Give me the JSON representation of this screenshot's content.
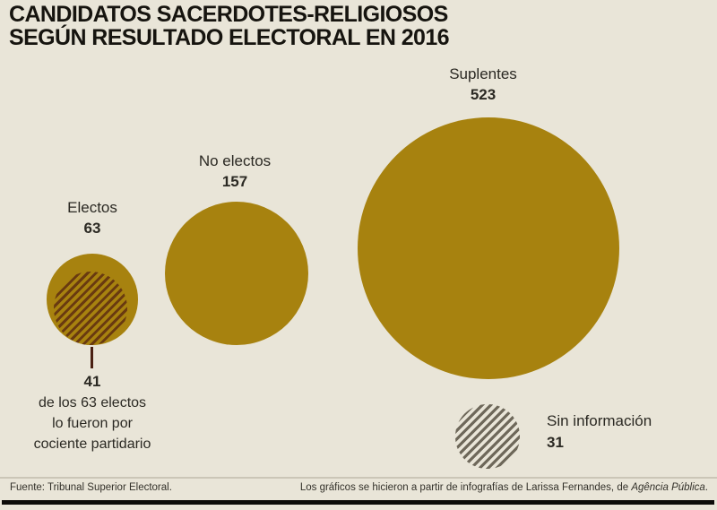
{
  "page": {
    "background": "#e9e5d8"
  },
  "title": {
    "line1": "CANDIDATOS SACERDOTES-RELIGIOSOS",
    "line2": "SEGÚN RESULTADO ELECTORAL EN 2016"
  },
  "chart_data": {
    "type": "bubble",
    "variant": "proportional-area-circles",
    "items": [
      {
        "label": "Electos",
        "value": 63,
        "fill": "solid-gold",
        "subset": {
          "value": 41,
          "fill": "hatched-brown",
          "annotation": "de los 63 electos lo fueron por cociente partidario"
        }
      },
      {
        "label": "No electos",
        "value": 157,
        "fill": "solid-gold"
      },
      {
        "label": "Suplentes",
        "value": 523,
        "fill": "solid-gold"
      },
      {
        "label": "Sin información",
        "value": 31,
        "fill": "hatched-gray"
      }
    ],
    "colors": {
      "gold": "#a7820f",
      "hatch_brown": "#693a10",
      "hatch_gray": "#6e685a",
      "background": "#e9e5d8"
    },
    "legend_position": "none",
    "grid": false
  },
  "annotation": {
    "value": "41",
    "line1": "de los 63 electos",
    "line2": "lo fueron por",
    "line3": "cociente partidario"
  },
  "footer": {
    "source": "Fuente: Tribunal Superior Electoral.",
    "credit_prefix": "Los gráficos se hicieron a partir de infografías de Larissa Fernandes, de ",
    "credit_italic": "Agência Pública",
    "credit_suffix": "."
  }
}
